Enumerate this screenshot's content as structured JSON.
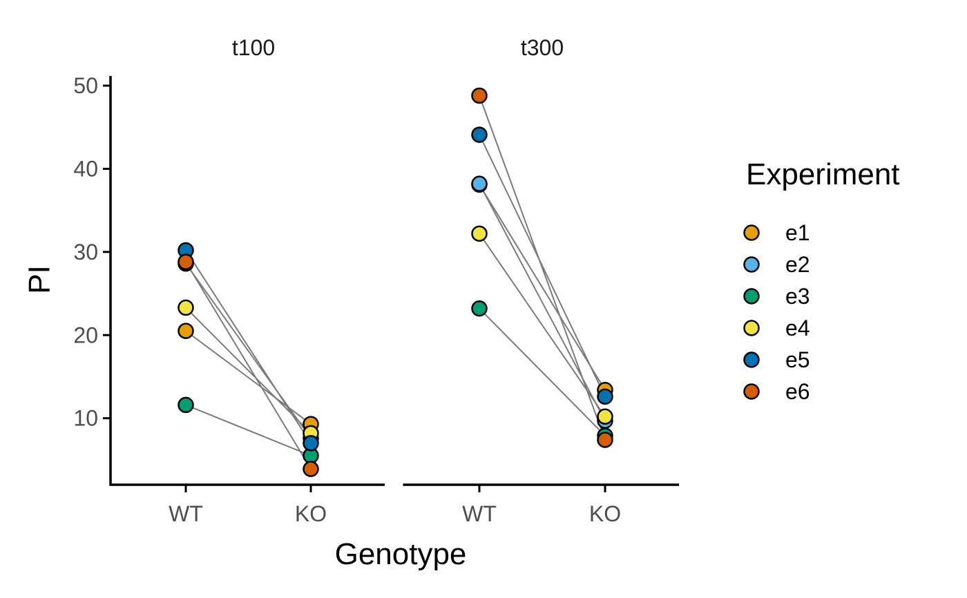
{
  "chart_data": {
    "type": "scatter",
    "facet_by": "Timepoint",
    "facets": [
      "t100",
      "t300"
    ],
    "categories": [
      "WT",
      "KO"
    ],
    "xlabel": "Genotype",
    "ylabel": "PI",
    "ylim": [
      2,
      51
    ],
    "yticks": [
      10,
      20,
      30,
      40,
      50
    ],
    "grid": false,
    "legend": {
      "title": "Experiment",
      "position": "right"
    },
    "connect_pairs": true,
    "line_color": "#7a7a7a",
    "point_outline": "#000000",
    "series": [
      {
        "name": "e1",
        "color": "#E69F00",
        "values": {
          "t100": {
            "WT": 20.5,
            "KO": 9.3
          },
          "t300": {
            "WT": 38.1,
            "KO": 13.4
          }
        }
      },
      {
        "name": "e2",
        "color": "#56B4E9",
        "values": {
          "t100": {
            "WT": 28.6,
            "KO": 7.6
          },
          "t300": {
            "WT": 38.2,
            "KO": 9.7
          }
        }
      },
      {
        "name": "e3",
        "color": "#009E73",
        "values": {
          "t100": {
            "WT": 11.6,
            "KO": 5.5
          },
          "t300": {
            "WT": 23.2,
            "KO": 7.9
          }
        }
      },
      {
        "name": "e4",
        "color": "#F0E442",
        "values": {
          "t100": {
            "WT": 23.3,
            "KO": 8.2
          },
          "t300": {
            "WT": 32.2,
            "KO": 10.2
          }
        }
      },
      {
        "name": "e5",
        "color": "#0072B2",
        "values": {
          "t100": {
            "WT": 30.2,
            "KO": 7.0
          },
          "t300": {
            "WT": 44.1,
            "KO": 12.6
          }
        }
      },
      {
        "name": "e6",
        "color": "#D55E00",
        "values": {
          "t100": {
            "WT": 28.8,
            "KO": 3.9
          },
          "t300": {
            "WT": 48.8,
            "KO": 7.4
          }
        }
      }
    ]
  }
}
